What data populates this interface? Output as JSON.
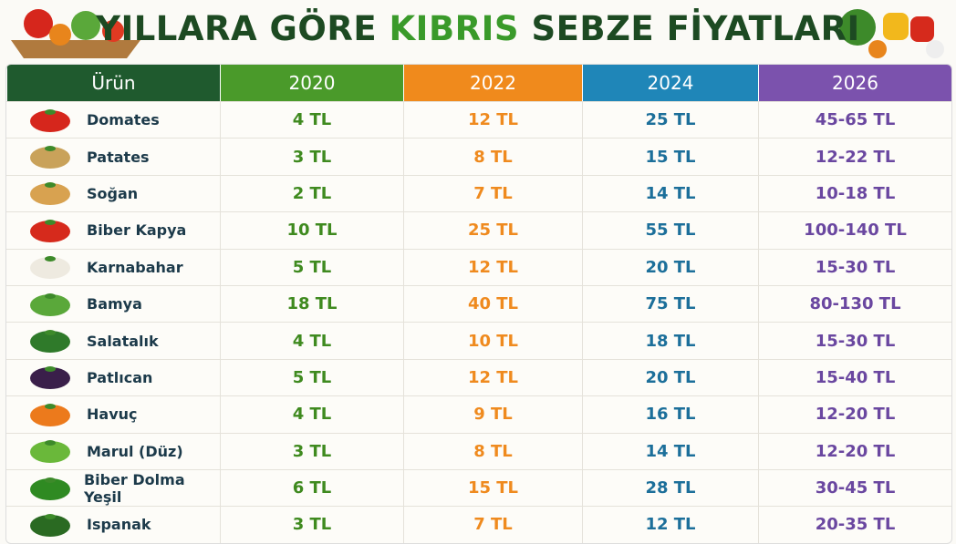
{
  "header": {
    "title_parts": [
      "YILLARA GÖRE",
      "KIBRIS",
      "SEBZE FİYATLARI"
    ]
  },
  "table": {
    "columns": [
      "Ürün",
      "2020",
      "2022",
      "2024",
      "2026"
    ],
    "rows": [
      [
        "Domates",
        "4 TL",
        "12 TL",
        "25 TL",
        "45-65 TL"
      ],
      [
        "Patates",
        "3 TL",
        "8 TL",
        "15 TL",
        "12-22 TL"
      ],
      [
        "Soğan",
        "2 TL",
        "7 TL",
        "14 TL",
        "10-18 TL"
      ],
      [
        "Biber Kapya",
        "10 TL",
        "25 TL",
        "55 TL",
        "100-140 TL"
      ],
      [
        "Karnabahar",
        "5 TL",
        "12 TL",
        "20 TL",
        "15-30 TL"
      ],
      [
        "Bamya",
        "18 TL",
        "40 TL",
        "75 TL",
        "80-130 TL"
      ],
      [
        "Salatalık",
        "4 TL",
        "10 TL",
        "18 TL",
        "15-30 TL"
      ],
      [
        "Patlıcan",
        "5 TL",
        "12 TL",
        "20 TL",
        "15-40 TL"
      ],
      [
        "Havuç",
        "4 TL",
        "9 TL",
        "16 TL",
        "12-20 TL"
      ],
      [
        "Marul (Düz)",
        "3 TL",
        "8 TL",
        "14 TL",
        "12-20 TL"
      ],
      [
        "Biber Dolma Yeşil",
        "6 TL",
        "15 TL",
        "28 TL",
        "30-45 TL"
      ],
      [
        "Ispanak",
        "3 TL",
        "7 TL",
        "12 TL",
        "20-35 TL"
      ]
    ]
  }
}
